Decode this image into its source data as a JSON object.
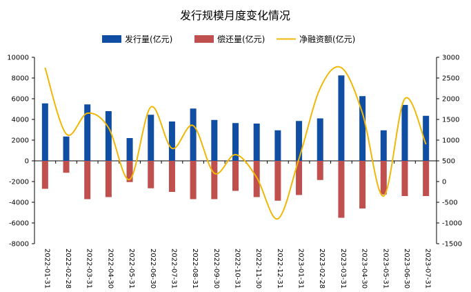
{
  "chart_data": {
    "type": "bar",
    "title": "发行规模月度变化情况",
    "categories": [
      "2022-01-31",
      "2022-02-28",
      "2022-03-31",
      "2022-04-30",
      "2022-05-31",
      "2022-06-30",
      "2022-07-31",
      "2022-08-31",
      "2022-09-30",
      "2022-10-31",
      "2022-11-30",
      "2022-12-31",
      "2023-01-31",
      "2023-02-28",
      "2023-03-31",
      "2023-04-30",
      "2023-05-31",
      "2023-06-30",
      "2023-07-31"
    ],
    "series": [
      {
        "name": "发行量(亿元)",
        "kind": "bar",
        "axis": "left",
        "color": "#0f4ea2",
        "values": [
          5550,
          2350,
          5450,
          4800,
          2200,
          4450,
          3800,
          5050,
          3950,
          3650,
          3600,
          2950,
          3850,
          4100,
          8250,
          6250,
          2950,
          5400,
          4350
        ]
      },
      {
        "name": "偿还量(亿元)",
        "kind": "bar",
        "axis": "left",
        "color": "#c0504d",
        "values": [
          -2700,
          -1150,
          -3700,
          -3500,
          -2050,
          -2650,
          -3000,
          -3700,
          -3700,
          -2900,
          -3500,
          -3850,
          -3300,
          -1850,
          -5500,
          -4600,
          -3250,
          -3400,
          -3400
        ]
      },
      {
        "name": "净融资额(亿元)",
        "kind": "line",
        "axis": "right",
        "color": "#f2b705",
        "values": [
          2750,
          1150,
          1650,
          1300,
          50,
          1800,
          800,
          1350,
          200,
          650,
          100,
          -900,
          550,
          2250,
          2750,
          1650,
          -350,
          2000,
          900
        ]
      }
    ],
    "y_left": {
      "min": -8000,
      "max": 10000,
      "step": 2000
    },
    "y_right": {
      "min": -1500,
      "max": 3000,
      "step": 500
    },
    "legend_position": "top",
    "grid": false
  }
}
